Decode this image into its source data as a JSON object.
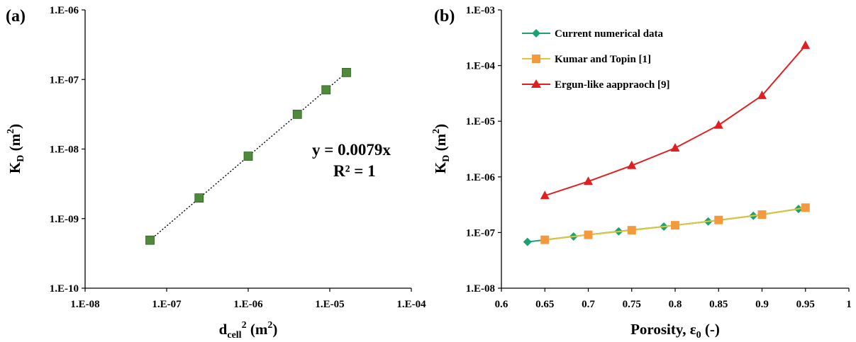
{
  "chart_data": [
    {
      "panel_label": "(a)",
      "type": "scatter",
      "x_scale": "log",
      "y_scale": "log",
      "xlim": [
        1e-08,
        0.0001
      ],
      "ylim": [
        1e-10,
        1e-06
      ],
      "x_tick_labels": [
        "1.E-08",
        "1.E-07",
        "1.E-06",
        "1.E-05",
        "1.E-04"
      ],
      "y_tick_labels": [
        "1.E-10",
        "1.E-09",
        "1.E-08",
        "1.E-07",
        "1.E-06"
      ],
      "xlabel": {
        "base": "d",
        "sub": "cell",
        "sup": "2",
        "unit": " (m",
        "unit_sup": "2",
        "unit_close": ")"
      },
      "ylabel": {
        "base": "K",
        "sub": "D",
        "unit": " (m",
        "unit_sup": "2",
        "unit_close": ")"
      },
      "grid": false,
      "trendline": {
        "style": "dotted",
        "equation": "y = 0.0079x",
        "r_squared": "R² = 1"
      },
      "series": [
        {
          "color": "#4e8a3a",
          "marker": "square",
          "x": [
            6.25e-08,
            2.5e-07,
            1e-06,
            4e-06,
            9e-06,
            1.6e-05
          ],
          "y": [
            4.9e-10,
            1.98e-09,
            7.9e-09,
            3.16e-08,
            7.1e-08,
            1.26e-07
          ]
        }
      ]
    },
    {
      "panel_label": "(b)",
      "type": "line",
      "x_scale": "linear",
      "y_scale": "log",
      "xlim": [
        0.6,
        1.0
      ],
      "ylim": [
        1e-08,
        0.001
      ],
      "x_tick_labels": [
        "0.6",
        "0.65",
        "0.7",
        "0.75",
        "0.8",
        "0.85",
        "0.9",
        "0.95",
        "1"
      ],
      "y_tick_labels": [
        "1.E-08",
        "1.E-07",
        "1.E-06",
        "1.E-05",
        "1.E-04",
        "1.E-03"
      ],
      "xlabel": {
        "text": "Porosity, ε",
        "sub": "0",
        "tail": " (-)"
      },
      "ylabel": {
        "base": "K",
        "sub": "D",
        "unit": " (m",
        "unit_sup": "2",
        "unit_close": ")"
      },
      "grid": false,
      "legend_placement": "top-left",
      "series": [
        {
          "name": "Current numerical data",
          "color": "#1aa36f",
          "marker": "diamond",
          "x": [
            0.63,
            0.683,
            0.735,
            0.787,
            0.838,
            0.89,
            0.942
          ],
          "y": [
            6.8e-08,
            8.5e-08,
            1.05e-07,
            1.28e-07,
            1.58e-07,
            2e-07,
            2.65e-07
          ]
        },
        {
          "name": "Kumar and Topin [1]",
          "color": "#f39a3e",
          "line_color": "#e3c43a",
          "marker": "square",
          "x": [
            0.65,
            0.7,
            0.75,
            0.8,
            0.85,
            0.9,
            0.95
          ],
          "y": [
            7.4e-08,
            9.1e-08,
            1.1e-07,
            1.35e-07,
            1.68e-07,
            2.1e-07,
            2.8e-07
          ]
        },
        {
          "name": "Ergun-like aappraoch [9]",
          "color": "#e02020",
          "marker": "triangle",
          "x": [
            0.65,
            0.7,
            0.75,
            0.8,
            0.85,
            0.9,
            0.95
          ],
          "y": [
            4.6e-07,
            8.3e-07,
            1.6e-06,
            3.3e-06,
            8.5e-06,
            2.9e-05,
            0.00023
          ]
        }
      ]
    }
  ]
}
